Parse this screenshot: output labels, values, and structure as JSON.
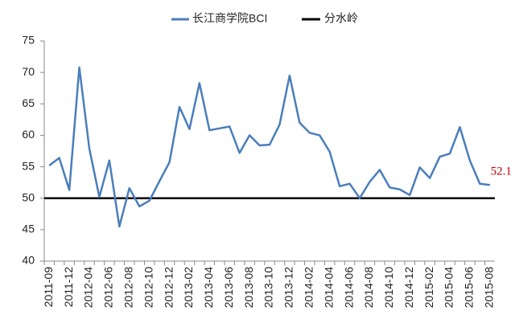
{
  "chart_data": {
    "type": "line",
    "categories": [
      "2011-09",
      null,
      "2011-12",
      null,
      "2012-04",
      null,
      "2012-06",
      null,
      "2012-08",
      null,
      "2012-10",
      null,
      "2012-12",
      null,
      "2013-02",
      null,
      "2013-04",
      null,
      "2013-06",
      null,
      "2013-08",
      null,
      "2013-10",
      null,
      "2013-12",
      null,
      "2014-02",
      null,
      "2014-04",
      null,
      "2014-06",
      null,
      "2014-08",
      null,
      "2014-10",
      null,
      "2014-12",
      null,
      "2015-02",
      null,
      "2015-04",
      null,
      "2015-06",
      null,
      "2015-08"
    ],
    "series": [
      {
        "name": "长江商学院BCI",
        "color": "#4a7ebb",
        "values": [
          55.2,
          56.4,
          51.3,
          70.8,
          57.9,
          50.2,
          56.0,
          45.5,
          51.6,
          48.7,
          49.6,
          52.7,
          55.7,
          64.5,
          61.0,
          68.3,
          60.8,
          61.1,
          61.4,
          57.2,
          60.0,
          58.4,
          58.5,
          61.7,
          69.5,
          62.0,
          60.4,
          60.0,
          57.4,
          51.9,
          52.3,
          50.0,
          52.6,
          54.5,
          51.7,
          51.4,
          50.5,
          54.9,
          53.2,
          56.6,
          57.1,
          61.3,
          56.0,
          52.3,
          52.1
        ]
      }
    ],
    "reference_line": {
      "name": "分水岭",
      "value": 50,
      "color": "#000000"
    },
    "label_last_point": true,
    "label_color": "#c00000",
    "ylim": [
      40,
      75
    ],
    "yticks": [
      40,
      45,
      50,
      55,
      60,
      65,
      70,
      75
    ],
    "legend": "top"
  }
}
